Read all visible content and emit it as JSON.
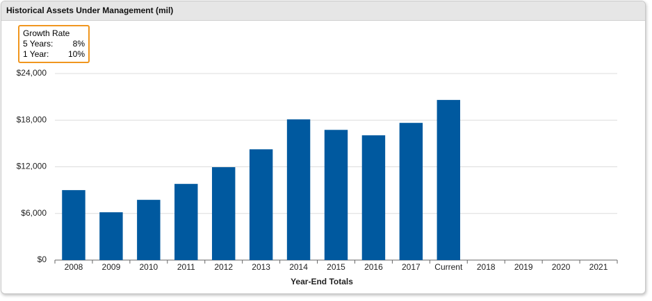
{
  "chart_data": {
    "type": "bar",
    "title": "Historical Assets Under Management (mil)",
    "x_label": "Year-End Totals",
    "categories": [
      "2008",
      "2009",
      "2010",
      "2011",
      "2012",
      "2013",
      "2014",
      "2015",
      "2016",
      "2017",
      "Current",
      "2018",
      "2019",
      "2020",
      "2021"
    ],
    "values": [
      9000,
      6150,
      7750,
      9800,
      11950,
      14250,
      18100,
      16750,
      16050,
      17650,
      20600,
      null,
      null,
      null,
      null
    ],
    "color": "#00599f",
    "ylim": [
      0,
      24000
    ],
    "yticks": [
      {
        "value": 0,
        "label": "$0"
      },
      {
        "value": 6000,
        "label": "$6,000"
      },
      {
        "value": 12000,
        "label": "$12,000"
      },
      {
        "value": 18000,
        "label": "$18,000"
      },
      {
        "value": 24000,
        "label": "$24,000"
      }
    ],
    "grid": true,
    "growth_rate": {
      "title": "Growth Rate",
      "rows": [
        [
          "5 Years:",
          "8%"
        ],
        [
          "1 Year:",
          "10%"
        ]
      ]
    }
  }
}
